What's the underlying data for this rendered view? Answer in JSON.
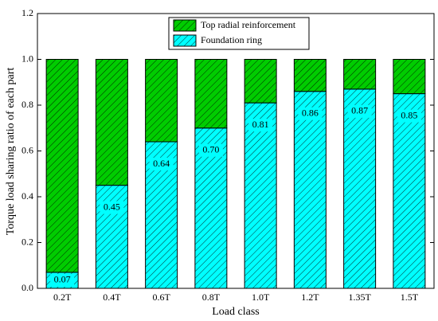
{
  "chart_data": {
    "type": "stacked_bar",
    "x_label": "Load class",
    "y_label": "Torque load sharing ratio of each part",
    "categories": [
      "0.2T",
      "0.4T",
      "0.6T",
      "0.8T",
      "1.0T",
      "1.2T",
      "1.35T",
      "1.5T"
    ],
    "series": [
      {
        "name": "Foundation ring",
        "color": "#00ffff",
        "values": [
          0.07,
          0.45,
          0.64,
          0.7,
          0.81,
          0.86,
          0.87,
          0.85
        ],
        "value_labels": [
          "0.07",
          "0.45",
          "0.64",
          "0.70",
          "0.81",
          "0.86",
          "0.87",
          "0.85"
        ]
      },
      {
        "name": "Top radial reinforcement",
        "color": "#00cc00",
        "values": [
          0.93,
          0.55,
          0.36,
          0.3,
          0.19,
          0.14,
          0.13,
          0.15
        ]
      }
    ],
    "ylim": [
      0,
      1.2
    ],
    "yticks": [
      {
        "value": 0,
        "label": "0.0"
      },
      0.2,
      0.4,
      0.6,
      0.8,
      {
        "value": 1,
        "label": "1.0"
      },
      1.2
    ],
    "legend": "top"
  }
}
